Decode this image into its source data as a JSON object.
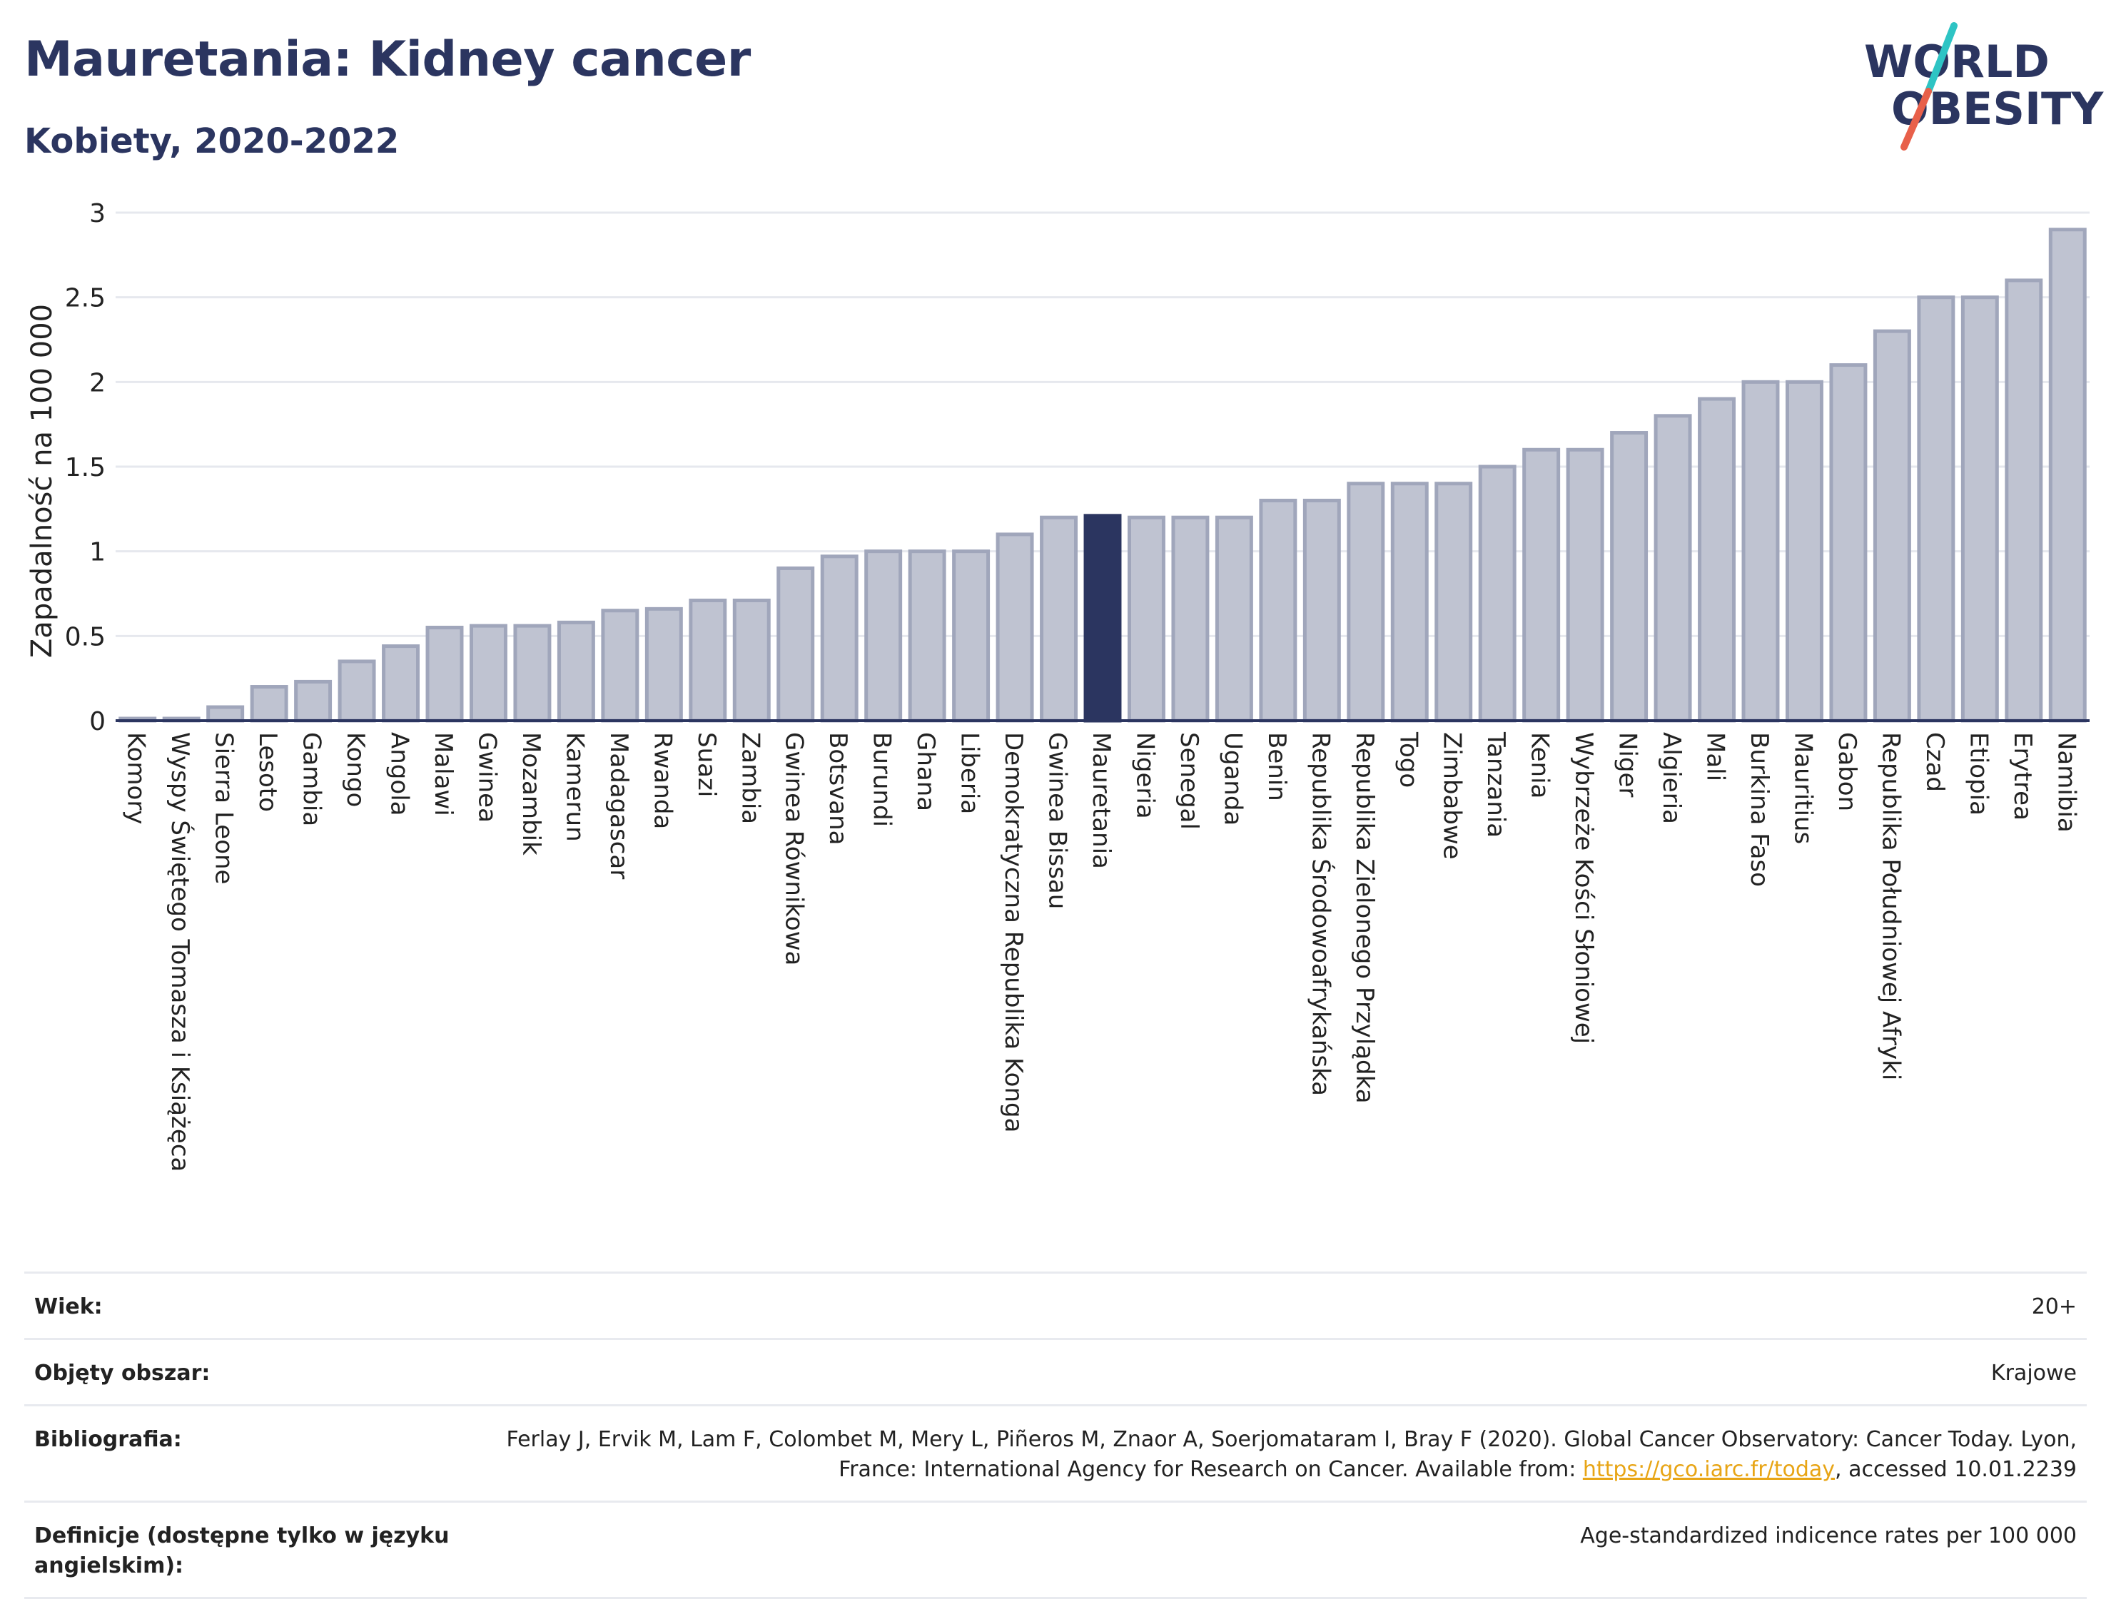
{
  "header": {
    "title": "Mauretania: Kidney cancer",
    "subtitle": "Kobiety, 2020-2022"
  },
  "logo": {
    "line1": "WORLD",
    "line2": "OBESITY",
    "accent_colors": [
      "#2ec4c4",
      "#e8604a"
    ]
  },
  "colors": {
    "bar": "#bfc3d1",
    "bar_stroke": "#a0a6bb",
    "highlight": "#2b3560",
    "text": "#2b3560"
  },
  "chart_data": {
    "type": "bar",
    "ylabel": "Zapadalność na 100 000",
    "ylim": [
      0,
      3
    ],
    "yticks": [
      "0",
      "0.5",
      "1",
      "1.5",
      "2",
      "2.5",
      "3"
    ],
    "grid": true,
    "highlight": "Mauretania",
    "categories": [
      "Komory",
      "Wyspy Świętego Tomasza i Książęca",
      "Sierra Leone",
      "Lesoto",
      "Gambia",
      "Kongo",
      "Angola",
      "Malawi",
      "Gwinea",
      "Mozambik",
      "Kamerun",
      "Madagascar",
      "Rwanda",
      "Suazi",
      "Zambia",
      "Gwinea Równikowa",
      "Botsvana",
      "Burundi",
      "Ghana",
      "Liberia",
      "Demokratyczna Republika Konga",
      "Gwinea Bissau",
      "Mauretania",
      "Nigeria",
      "Senegal",
      "Uganda",
      "Benin",
      "Republika Środowoafrykańska",
      "Republika Zielonego Przylądka",
      "Togo",
      "Zimbabwe",
      "Tanzania",
      "Kenia",
      "Wybrzeże Kości Słoniowej",
      "Niger",
      "Algieria",
      "Mali",
      "Burkina Faso",
      "Mauritius",
      "Gabon",
      "Republika Południowej Afryki",
      "Czad",
      "Etiopia",
      "Erytrea",
      "Namibia"
    ],
    "values": [
      0.01,
      0.01,
      0.08,
      0.2,
      0.23,
      0.35,
      0.44,
      0.55,
      0.56,
      0.56,
      0.58,
      0.65,
      0.66,
      0.71,
      0.71,
      0.9,
      0.97,
      1.0,
      1.0,
      1.0,
      1.1,
      1.2,
      1.21,
      1.2,
      1.2,
      1.2,
      1.3,
      1.3,
      1.4,
      1.4,
      1.4,
      1.5,
      1.6,
      1.6,
      1.7,
      1.8,
      1.9,
      2.0,
      2.0,
      2.1,
      2.3,
      2.5,
      2.5,
      2.6,
      2.9
    ]
  },
  "meta": {
    "age_label": "Wiek:",
    "age_value": "20+",
    "coverage_label": "Objęty obszar:",
    "coverage_value": "Krajowe",
    "bib_label": "Bibliografia:",
    "bib_text_1": "Ferlay J, Ervik M, Lam F, Colombet M, Mery L, Piñeros M, Znaor A, Soerjomataram I, Bray F (2020). Global Cancer Observatory: Cancer Today. Lyon, France: International Agency for Research on Cancer. Available from: ",
    "bib_link": "https://gco.iarc.fr/today",
    "bib_text_2": ", accessed 10.01.2239",
    "def_label": "Definicje (dostępne tylko w języku angielskim):",
    "def_value": "Age-standardized indicence rates per 100 000"
  }
}
